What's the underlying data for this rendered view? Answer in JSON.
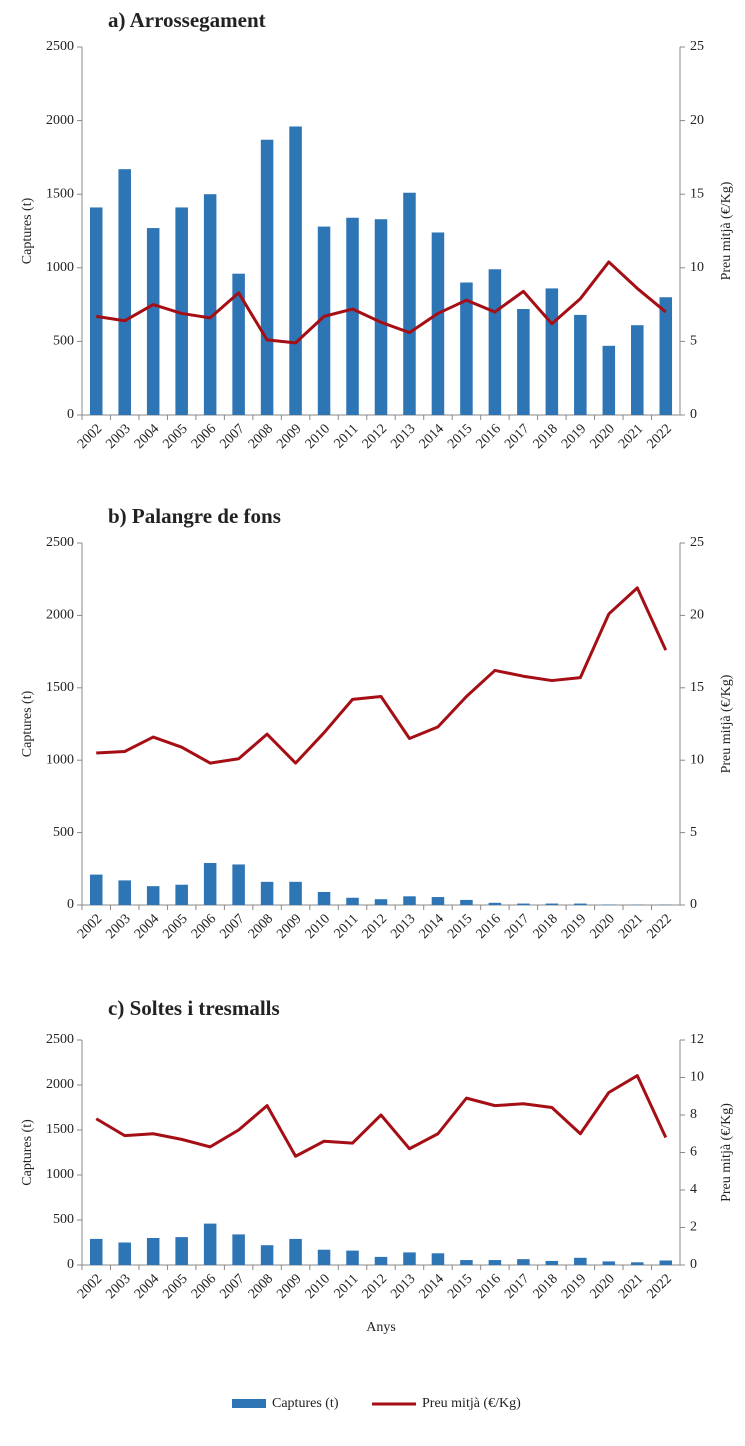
{
  "chart_data": [
    {
      "type": "bar_line",
      "title": "a) Arrossegament",
      "y_label": "Captures (t)",
      "y2_label": "Preu mitjà (€/Kg)",
      "categories": [
        "2002",
        "2003",
        "2004",
        "2005",
        "2006",
        "2007",
        "2008",
        "2009",
        "2010",
        "2011",
        "2012",
        "2013",
        "2014",
        "2015",
        "2016",
        "2017",
        "2018",
        "2019",
        "2020",
        "2021",
        "2022"
      ],
      "series": [
        {
          "name": "Captures (t)",
          "color": "#2e75b6",
          "kind": "bar",
          "values": [
            1410,
            1670,
            1270,
            1410,
            1500,
            960,
            1870,
            1960,
            1280,
            1340,
            1330,
            1510,
            1240,
            900,
            990,
            720,
            860,
            680,
            470,
            610,
            800
          ]
        },
        {
          "name": "Preu mitjà (€/Kg)",
          "color": "#a50e14",
          "kind": "line",
          "axis": "y2",
          "values": [
            6.7,
            6.4,
            7.5,
            6.9,
            6.6,
            8.3,
            5.1,
            4.9,
            6.7,
            7.2,
            6.3,
            5.6,
            6.9,
            7.8,
            7.0,
            8.4,
            6.2,
            7.9,
            10.4,
            8.6,
            7.0
          ]
        }
      ],
      "ylim": [
        0,
        2500
      ],
      "yticks": [
        0,
        500,
        1000,
        1500,
        2000,
        2500
      ],
      "y2lim": [
        0,
        25
      ],
      "y2ticks": [
        0,
        5,
        10,
        15,
        20,
        25
      ]
    },
    {
      "type": "bar_line",
      "title": "b) Palangre de fons",
      "y_label": "Captures (t)",
      "y2_label": "Preu mitjà (€/Kg)",
      "categories": [
        "2002",
        "2003",
        "2004",
        "2005",
        "2006",
        "2007",
        "2008",
        "2009",
        "2010",
        "2011",
        "2012",
        "2013",
        "2014",
        "2015",
        "2016",
        "2017",
        "2018",
        "2019",
        "2020",
        "2021",
        "2022"
      ],
      "series": [
        {
          "name": "Captures (t)",
          "color": "#2e75b6",
          "kind": "bar",
          "values": [
            210,
            170,
            130,
            140,
            290,
            280,
            160,
            160,
            90,
            50,
            40,
            60,
            55,
            35,
            15,
            10,
            10,
            10,
            3,
            2,
            2
          ]
        },
        {
          "name": "Preu mitjà (€/Kg)",
          "color": "#a50e14",
          "kind": "line",
          "axis": "y2",
          "values": [
            10.5,
            10.6,
            11.6,
            10.9,
            9.8,
            10.1,
            11.8,
            9.8,
            11.9,
            14.2,
            14.4,
            11.5,
            12.3,
            14.4,
            16.2,
            15.8,
            15.5,
            15.7,
            20.1,
            21.9,
            17.6
          ]
        }
      ],
      "ylim": [
        0,
        2500
      ],
      "yticks": [
        0,
        500,
        1000,
        1500,
        2000,
        2500
      ],
      "y2lim": [
        0,
        25
      ],
      "y2ticks": [
        0,
        5,
        10,
        15,
        20,
        25
      ]
    },
    {
      "type": "bar_line",
      "title": "c) Soltes i tresmalls",
      "y_label": "Captures (t)",
      "y2_label": "Preu mitjà (€/Kg)",
      "x_label": "Anys",
      "categories": [
        "2002",
        "2003",
        "2004",
        "2005",
        "2006",
        "2007",
        "2008",
        "2009",
        "2010",
        "2011",
        "2012",
        "2013",
        "2014",
        "2015",
        "2016",
        "2017",
        "2018",
        "2019",
        "2020",
        "2021",
        "2022"
      ],
      "series": [
        {
          "name": "Captures (t)",
          "color": "#2e75b6",
          "kind": "bar",
          "values": [
            290,
            250,
            300,
            310,
            460,
            340,
            220,
            290,
            170,
            160,
            90,
            140,
            130,
            55,
            55,
            65,
            45,
            80,
            40,
            30,
            50
          ]
        },
        {
          "name": "Preu mitjà (€/Kg)",
          "color": "#a50e14",
          "kind": "line",
          "axis": "y2",
          "values": [
            7.8,
            6.9,
            7.0,
            6.7,
            6.3,
            7.2,
            8.5,
            5.8,
            6.6,
            6.5,
            8.0,
            6.2,
            7.0,
            8.9,
            8.5,
            8.6,
            8.4,
            7.0,
            9.2,
            10.1,
            6.8
          ]
        }
      ],
      "ylim": [
        0,
        2500
      ],
      "yticks": [
        0,
        500,
        1000,
        1500,
        2000,
        2500
      ],
      "y2lim": [
        0,
        12
      ],
      "y2ticks": [
        0,
        2,
        4,
        6,
        8,
        10,
        12
      ]
    }
  ]
}
